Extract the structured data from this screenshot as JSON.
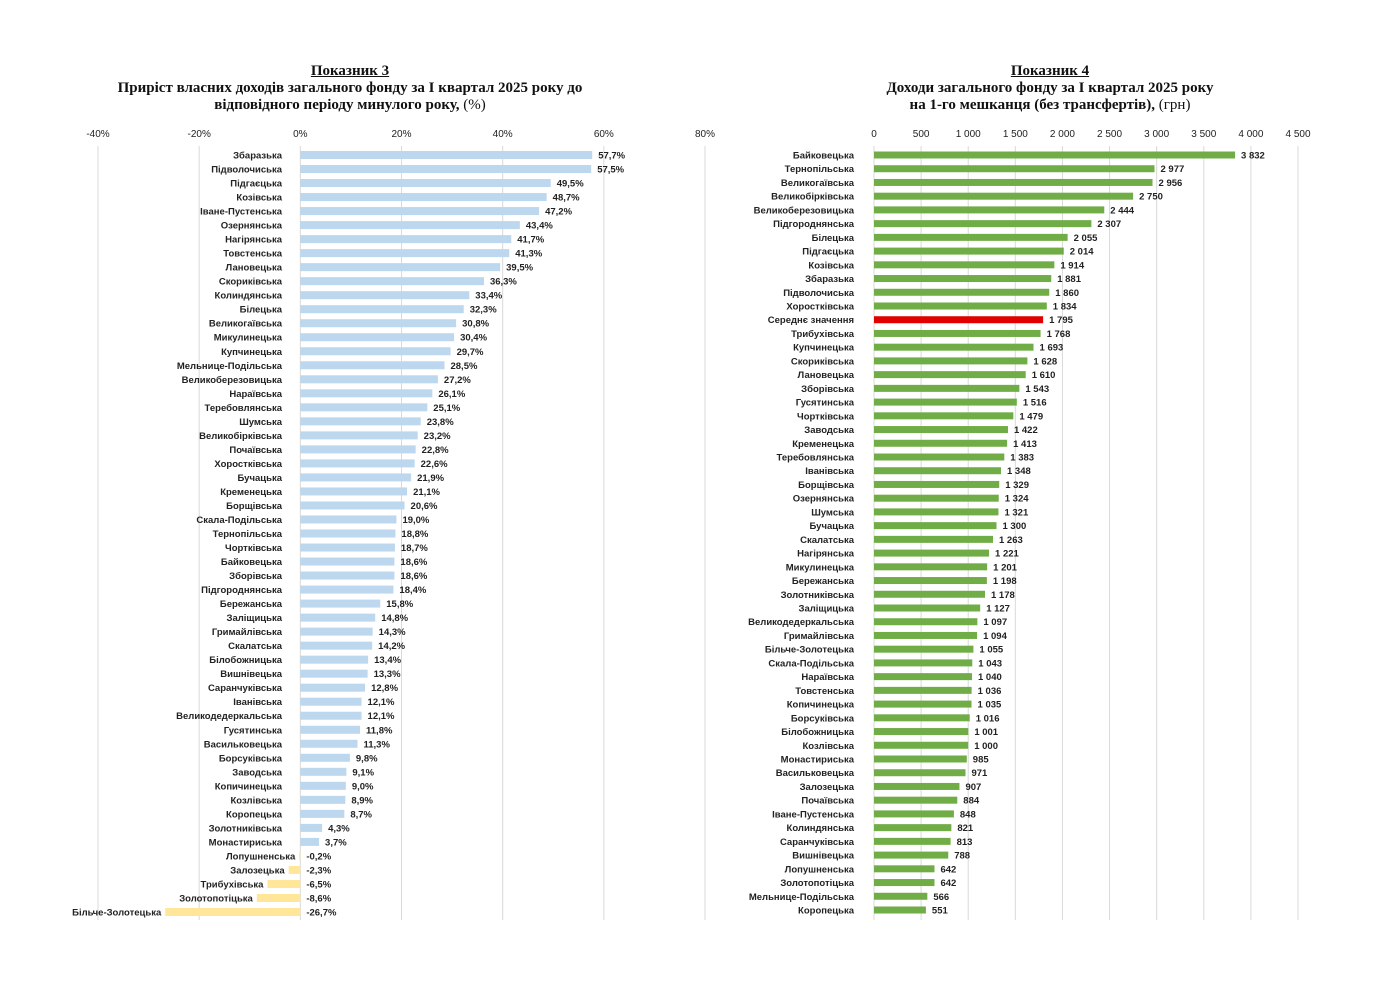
{
  "chart_data": [
    {
      "type": "bar",
      "orientation": "horizontal",
      "title": "Показник 3",
      "subtitle_line1": "Приріст власних доходів загального фонду за І квартал  2025 року до",
      "subtitle_line2": "відповідного періоду минулого року,",
      "unit": "(%)",
      "xlim": [
        -40,
        80
      ],
      "ticks": [
        -40,
        -20,
        0,
        20,
        40,
        60,
        80
      ],
      "tick_labels": [
        "-40%",
        "-20%",
        "0%",
        "20%",
        "40%",
        "60%",
        "80%"
      ],
      "grid": true,
      "colors": {
        "positive": "#bdd7ee",
        "negative": "#ffe699",
        "grid": "#d9d9d9"
      },
      "categories": [
        "Збаразька",
        "Підволочиська",
        "Підгаєцька",
        "Козівська",
        "Іване-Пустенська",
        "Озернянська",
        "Нагірянська",
        "Товстенська",
        "Лановецька",
        "Скориківська",
        "Колиндянська",
        "Білецька",
        "Великогаївська",
        "Микулинецька",
        "Купчинецька",
        "Мельнице-Подільська",
        "Великоберезовицька",
        "Нараївська",
        "Теребовлянська",
        "Шумська",
        "Великобірківська",
        "Почаївська",
        "Хоростківська",
        "Бучацька",
        "Кременецька",
        "Борщівська",
        "Скала-Подільська",
        "Тернопільська",
        "Чортківська",
        "Байковецька",
        "Зборівська",
        "Підгороднянська",
        "Бережанська",
        "Заліщицька",
        "Гримайлівська",
        "Скалатська",
        "Білобожницька",
        "Вишнівецька",
        "Саранчуківська",
        "Іванівська",
        "Великодедеркальська",
        "Гусятинська",
        "Васильковецька",
        "Борсуківська",
        "Заводська",
        "Копичинецька",
        "Козлівська",
        "Коропецька",
        "Золотниківська",
        "Монастириська",
        "Лопушненська",
        "Залозецька",
        "Трибухівська",
        "Золотопотіцька",
        "Більче-Золотецька"
      ],
      "values": [
        57.7,
        57.5,
        49.5,
        48.7,
        47.2,
        43.4,
        41.7,
        41.3,
        39.5,
        36.3,
        33.4,
        32.3,
        30.8,
        30.4,
        29.7,
        28.5,
        27.2,
        26.1,
        25.1,
        23.8,
        23.2,
        22.8,
        22.6,
        21.9,
        21.1,
        20.6,
        19.0,
        18.8,
        18.7,
        18.6,
        18.6,
        18.4,
        15.8,
        14.8,
        14.3,
        14.2,
        13.4,
        13.3,
        12.8,
        12.1,
        12.1,
        11.8,
        11.3,
        9.8,
        9.1,
        9.0,
        8.9,
        8.7,
        4.3,
        3.7,
        -0.2,
        -2.3,
        -6.5,
        -8.6,
        -26.7
      ],
      "value_labels": [
        "57,7%",
        "57,5%",
        "49,5%",
        "48,7%",
        "47,2%",
        "43,4%",
        "41,7%",
        "41,3%",
        "39,5%",
        "36,3%",
        "33,4%",
        "32,3%",
        "30,8%",
        "30,4%",
        "29,7%",
        "28,5%",
        "27,2%",
        "26,1%",
        "25,1%",
        "23,8%",
        "23,2%",
        "22,8%",
        "22,6%",
        "21,9%",
        "21,1%",
        "20,6%",
        "19,0%",
        "18,8%",
        "18,7%",
        "18,6%",
        "18,6%",
        "18,4%",
        "15,8%",
        "14,8%",
        "14,3%",
        "14,2%",
        "13,4%",
        "13,3%",
        "12,8%",
        "12,1%",
        "12,1%",
        "11,8%",
        "11,3%",
        "9,8%",
        "9,1%",
        "9,0%",
        "8,9%",
        "8,7%",
        "4,3%",
        "3,7%",
        "-0,2%",
        "-2,3%",
        "-6,5%",
        "-8,6%",
        "-26,7%"
      ]
    },
    {
      "type": "bar",
      "orientation": "horizontal",
      "title": "Показник 4",
      "subtitle_line1": "Доходи загального фонду за  І квартал 2025 року",
      "subtitle_line2": "на 1-го мешканця (без трансфертів),",
      "unit": "(грн)",
      "xlim": [
        0,
        4500
      ],
      "ticks": [
        0,
        500,
        1000,
        1500,
        2000,
        2500,
        3000,
        3500,
        4000,
        4500
      ],
      "tick_labels": [
        "0",
        "500",
        "1 000",
        "1 500",
        "2 000",
        "2 500",
        "3 000",
        "3 500",
        "4 000",
        "4 500"
      ],
      "grid": true,
      "colors": {
        "default": "#70ad47",
        "highlight": "#e00000",
        "grid": "#d9d9d9"
      },
      "highlight_category": "Середнє значення",
      "categories": [
        "Байковецька",
        "Тернопільська",
        "Великогаївська",
        "Великобірківська",
        "Великоберезовицька",
        "Підгороднянська",
        "Білецька",
        "Підгаєцька",
        "Козівська",
        "Збаразька",
        "Підволочиська",
        "Хоростківська",
        "Середнє значення",
        "Трибухівська",
        "Купчинецька",
        "Скориківська",
        "Лановецька",
        "Зборівська",
        "Гусятинська",
        "Чортківська",
        "Заводська",
        "Кременецька",
        "Теребовлянська",
        "Іванівська",
        "Борщівська",
        "Озернянська",
        "Шумська",
        "Бучацька",
        "Скалатська",
        "Нагірянська",
        "Микулинецька",
        "Бережанська",
        "Золотниківська",
        "Заліщицька",
        "Великодедеркальська",
        "Гримайлівська",
        "Більче-Золотецька",
        "Скала-Подільська",
        "Нараївська",
        "Товстенська",
        "Копичинецька",
        "Борсуківська",
        "Білобожницька",
        "Козлівська",
        "Монастириська",
        "Васильковецька",
        "Залозецька",
        "Почаївська",
        "Іване-Пустенська",
        "Колиндянська",
        "Саранчуківська",
        "Вишнівецька",
        "Лопушненська",
        "Золотопотіцька",
        "Мельнице-Подільська",
        "Коропецька"
      ],
      "values": [
        3832,
        2977,
        2956,
        2750,
        2444,
        2307,
        2055,
        2014,
        1914,
        1881,
        1860,
        1834,
        1795,
        1768,
        1693,
        1628,
        1610,
        1543,
        1516,
        1479,
        1422,
        1413,
        1383,
        1348,
        1329,
        1324,
        1321,
        1300,
        1263,
        1221,
        1201,
        1198,
        1178,
        1127,
        1097,
        1094,
        1055,
        1043,
        1040,
        1036,
        1035,
        1016,
        1001,
        1000,
        985,
        971,
        907,
        884,
        848,
        821,
        813,
        788,
        642,
        642,
        566,
        551
      ],
      "value_labels": [
        "3 832",
        "2 977",
        "2 956",
        "2 750",
        "2 444",
        "2 307",
        "2 055",
        "2 014",
        "1 914",
        "1 881",
        "1 860",
        "1 834",
        "1 795",
        "1 768",
        "1 693",
        "1 628",
        "1 610",
        "1 543",
        "1 516",
        "1 479",
        "1 422",
        "1 413",
        "1 383",
        "1 348",
        "1 329",
        "1 324",
        "1 321",
        "1 300",
        "1 263",
        "1 221",
        "1 201",
        "1 198",
        "1 178",
        "1 127",
        "1 097",
        "1 094",
        "1 055",
        "1 043",
        "1 040",
        "1 036",
        "1 035",
        "1 016",
        "1 001",
        "1 000",
        "985",
        "971",
        "907",
        "884",
        "848",
        "821",
        "813",
        "788",
        "642",
        "642",
        "566",
        "551"
      ]
    }
  ]
}
